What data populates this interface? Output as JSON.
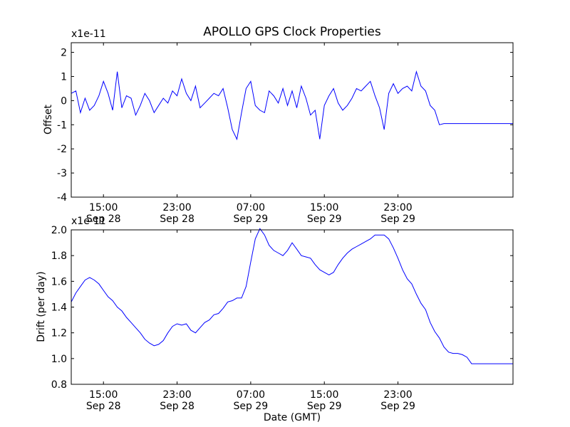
{
  "title": "APOLLO GPS Clock Properties",
  "colors": {
    "line": "#0000ff",
    "axis": "#000000",
    "background": "#ffffff"
  },
  "chart_data": [
    {
      "type": "line",
      "name": "offset-plot",
      "ylabel": "Offset",
      "multiplier": "x1e-11",
      "ylim": [
        -4,
        2.4
      ],
      "yticks": [
        -4,
        -3,
        -2,
        -1,
        0,
        1,
        2
      ],
      "ytick_labels": [
        "-4",
        "-3",
        "-2",
        "-1",
        "0",
        "1",
        "2"
      ],
      "xlim": [
        11.5,
        59.5
      ],
      "xticks": [
        15,
        23,
        31,
        39,
        47
      ],
      "xtick_labels": [
        [
          "15:00",
          "Sep 28"
        ],
        [
          "23:00",
          "Sep 28"
        ],
        [
          "07:00",
          "Sep 29"
        ],
        [
          "15:00",
          "Sep 29"
        ],
        [
          "23:00",
          "Sep 29"
        ]
      ],
      "x": [
        11.5,
        12,
        12.5,
        13,
        13.5,
        14,
        14.5,
        15,
        15.5,
        16,
        16.5,
        17,
        17.5,
        18,
        18.5,
        19,
        19.5,
        20,
        20.5,
        21,
        21.5,
        22,
        22.5,
        23,
        23.5,
        24,
        24.5,
        25,
        25.5,
        26,
        26.5,
        27,
        27.5,
        28,
        28.5,
        29,
        29.5,
        30,
        30.5,
        31,
        31.5,
        32,
        32.5,
        33,
        33.5,
        34,
        34.5,
        35,
        35.5,
        36,
        36.5,
        37,
        37.5,
        38,
        38.5,
        39,
        39.5,
        40,
        40.5,
        41,
        41.5,
        42,
        42.5,
        43,
        43.5,
        44,
        44.5,
        45,
        45.5,
        46,
        46.5,
        47,
        47.5,
        48,
        48.5,
        49,
        49.5,
        50,
        50.5,
        51,
        51.5,
        52,
        52.5,
        53,
        53.5,
        54,
        54.5,
        55,
        55.5,
        56,
        56.5,
        57,
        57.5,
        58,
        58.5,
        59,
        59.5
      ],
      "y": [
        0.3,
        0.4,
        -0.5,
        0.1,
        -0.4,
        -0.2,
        0.2,
        0.8,
        0.3,
        -0.4,
        1.2,
        -0.3,
        0.2,
        0.1,
        -0.6,
        -0.2,
        0.3,
        0.0,
        -0.5,
        -0.2,
        0.1,
        -0.1,
        0.4,
        0.2,
        0.9,
        0.3,
        0.0,
        0.6,
        -0.3,
        -0.1,
        0.1,
        0.3,
        0.2,
        0.5,
        -0.3,
        -1.2,
        -1.6,
        -0.5,
        0.5,
        0.8,
        -0.2,
        -0.4,
        -0.5,
        0.4,
        0.2,
        -0.1,
        0.5,
        -0.2,
        0.4,
        -0.3,
        0.6,
        0.1,
        -0.6,
        -0.4,
        -1.6,
        -0.2,
        0.2,
        0.5,
        -0.1,
        -0.4,
        -0.2,
        0.1,
        0.5,
        0.4,
        0.6,
        0.8,
        0.2,
        -0.3,
        -1.2,
        0.3,
        0.7,
        0.3,
        0.5,
        0.6,
        0.4,
        1.2,
        0.6,
        0.4,
        -0.2,
        -0.4,
        -1.0,
        -0.95,
        -0.95,
        -0.95,
        -0.95,
        -0.95,
        -0.95,
        -0.95,
        -0.95,
        -0.95,
        -0.95,
        -0.95,
        -0.95,
        -0.95,
        -0.95,
        -0.95,
        -0.95
      ]
    },
    {
      "type": "line",
      "name": "drift-plot",
      "ylabel": "Drift (per day)",
      "xlabel": "Date (GMT)",
      "multiplier": "x1e-11",
      "ylim": [
        0.8,
        2.0
      ],
      "yticks": [
        0.8,
        1.0,
        1.2,
        1.4,
        1.6,
        1.8,
        2.0
      ],
      "ytick_labels": [
        "0.8",
        "1.0",
        "1.2",
        "1.4",
        "1.6",
        "1.8",
        "2.0"
      ],
      "xlim": [
        11.5,
        59.5
      ],
      "xticks": [
        15,
        23,
        31,
        39,
        47
      ],
      "xtick_labels": [
        [
          "15:00",
          "Sep 28"
        ],
        [
          "23:00",
          "Sep 28"
        ],
        [
          "07:00",
          "Sep 29"
        ],
        [
          "15:00",
          "Sep 29"
        ],
        [
          "23:00",
          "Sep 29"
        ]
      ],
      "x": [
        11.5,
        12,
        12.5,
        13,
        13.5,
        14,
        14.5,
        15,
        15.5,
        16,
        16.5,
        17,
        17.5,
        18,
        18.5,
        19,
        19.5,
        20,
        20.5,
        21,
        21.5,
        22,
        22.5,
        23,
        23.5,
        24,
        24.5,
        25,
        25.5,
        26,
        26.5,
        27,
        27.5,
        28,
        28.5,
        29,
        29.5,
        30,
        30.5,
        31,
        31.5,
        32,
        32.5,
        33,
        33.5,
        34,
        34.5,
        35,
        35.5,
        36,
        36.5,
        37,
        37.5,
        38,
        38.5,
        39,
        39.5,
        40,
        40.5,
        41,
        41.5,
        42,
        42.5,
        43,
        43.5,
        44,
        44.5,
        45,
        45.5,
        46,
        46.5,
        47,
        47.5,
        48,
        48.5,
        49,
        49.5,
        50,
        50.5,
        51,
        51.5,
        52,
        52.5,
        53,
        53.5,
        54,
        54.5,
        55,
        55.5,
        56,
        56.5,
        57,
        57.5,
        58,
        58.5,
        59,
        59.5
      ],
      "y": [
        1.44,
        1.51,
        1.56,
        1.61,
        1.63,
        1.61,
        1.58,
        1.53,
        1.48,
        1.45,
        1.4,
        1.37,
        1.32,
        1.28,
        1.24,
        1.2,
        1.15,
        1.12,
        1.1,
        1.11,
        1.14,
        1.2,
        1.25,
        1.27,
        1.26,
        1.27,
        1.22,
        1.2,
        1.24,
        1.28,
        1.3,
        1.34,
        1.35,
        1.39,
        1.44,
        1.45,
        1.47,
        1.47,
        1.56,
        1.75,
        1.93,
        2.01,
        1.96,
        1.88,
        1.84,
        1.82,
        1.8,
        1.84,
        1.9,
        1.85,
        1.8,
        1.79,
        1.78,
        1.73,
        1.69,
        1.67,
        1.65,
        1.67,
        1.73,
        1.78,
        1.82,
        1.85,
        1.87,
        1.89,
        1.91,
        1.93,
        1.96,
        1.96,
        1.96,
        1.93,
        1.86,
        1.78,
        1.69,
        1.62,
        1.58,
        1.5,
        1.43,
        1.38,
        1.28,
        1.21,
        1.16,
        1.09,
        1.05,
        1.04,
        1.04,
        1.03,
        1.01,
        0.96,
        0.96,
        0.96,
        0.96,
        0.96,
        0.96,
        0.96,
        0.96,
        0.96,
        0.96
      ]
    }
  ]
}
